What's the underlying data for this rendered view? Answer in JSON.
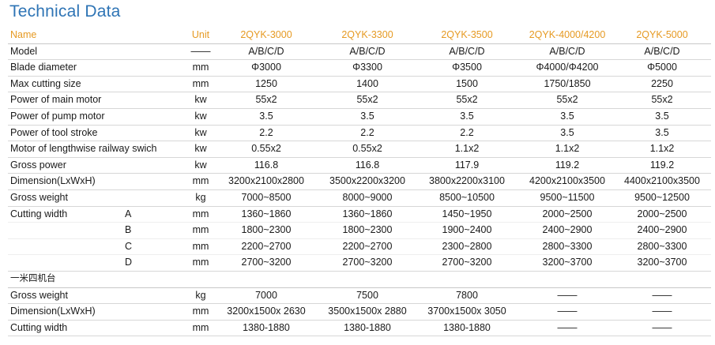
{
  "title": "Technical Data",
  "header": {
    "name": "Name",
    "unit": "Unit",
    "models": [
      "2QYK-3000",
      "2QYK-3300",
      "2QYK-3500",
      "2QYK-4000/4200",
      "2QYK-5000"
    ]
  },
  "rows": [
    {
      "name": "Model",
      "sub": "",
      "unit": "——",
      "values": [
        "A/B/C/D",
        "A/B/C/D",
        "A/B/C/D",
        "A/B/C/D",
        "A/B/C/D"
      ]
    },
    {
      "name": "Blade diameter",
      "sub": "",
      "unit": "mm",
      "values": [
        "Φ3000",
        "Φ3300",
        "Φ3500",
        "Φ4000/Φ4200",
        "Φ5000"
      ]
    },
    {
      "name": "Max cutting size",
      "sub": "",
      "unit": "mm",
      "values": [
        "1250",
        "1400",
        "1500",
        "1750/1850",
        "2250"
      ]
    },
    {
      "name": "Power of main motor",
      "sub": "",
      "unit": "kw",
      "values": [
        "55x2",
        "55x2",
        "55x2",
        "55x2",
        "55x2"
      ]
    },
    {
      "name": "Power of pump motor",
      "sub": "",
      "unit": "kw",
      "values": [
        "3.5",
        "3.5",
        "3.5",
        "3.5",
        "3.5"
      ]
    },
    {
      "name": "Power of tool stroke",
      "sub": "",
      "unit": "kw",
      "values": [
        "2.2",
        "2.2",
        "2.2",
        "3.5",
        "3.5"
      ]
    },
    {
      "name": "Motor of lengthwise railway swich",
      "sub": "",
      "unit": "kw",
      "values": [
        "0.55x2",
        "0.55x2",
        "1.1x2",
        "1.1x2",
        "1.1x2"
      ]
    },
    {
      "name": "Gross power",
      "sub": "",
      "unit": "kw",
      "values": [
        "116.8",
        "116.8",
        "117.9",
        "119.2",
        "119.2"
      ]
    },
    {
      "name": "Dimension(LxWxH)",
      "sub": "",
      "unit": "mm",
      "values": [
        "3200x2100x2800",
        "3500x2200x3200",
        "3800x2200x3100",
        "4200x2100x3500",
        "4400x2100x3500"
      ]
    },
    {
      "name": "Gross weight",
      "sub": "",
      "unit": "kg",
      "values": [
        "7000~8500",
        "8000~9000",
        "8500~10500",
        "9500~11500",
        "9500~12500"
      ]
    },
    {
      "name": "Cutting width",
      "sub": "A",
      "unit": "mm",
      "values": [
        "1360~1860",
        "1360~1860",
        "1450~1950",
        "2000~2500",
        "2000~2500"
      ]
    },
    {
      "name": "",
      "sub": "B",
      "unit": "mm",
      "values": [
        "1800~2300",
        "1800~2300",
        "1900~2400",
        "2400~2900",
        "2400~2900"
      ]
    },
    {
      "name": "",
      "sub": "C",
      "unit": "mm",
      "values": [
        "2200~2700",
        "2200~2700",
        "2300~2800",
        "2800~3300",
        "2800~3300"
      ]
    },
    {
      "name": "",
      "sub": "D",
      "unit": "mm",
      "values": [
        "2700~3200",
        "2700~3200",
        "2700~3200",
        "3200~3700",
        "3200~3700"
      ]
    },
    {
      "name": "一米四机台",
      "sub": "",
      "unit": "",
      "values": [
        "",
        "",
        "",
        "",
        ""
      ]
    },
    {
      "name": "Gross weight",
      "sub": "",
      "unit": "kg",
      "values": [
        "7000",
        "7500",
        "7800",
        "——",
        "——"
      ]
    },
    {
      "name": "Dimension(LxWxH)",
      "sub": "",
      "unit": "mm",
      "values": [
        "3200x1500x 2630",
        "3500x1500x 2880",
        "3700x1500x 3050",
        "——",
        "——"
      ]
    },
    {
      "name": "Cutting width",
      "sub": "",
      "unit": "mm",
      "values": [
        "1380-1880",
        "1380-1880",
        "1380-1880",
        "——",
        "——"
      ]
    }
  ]
}
